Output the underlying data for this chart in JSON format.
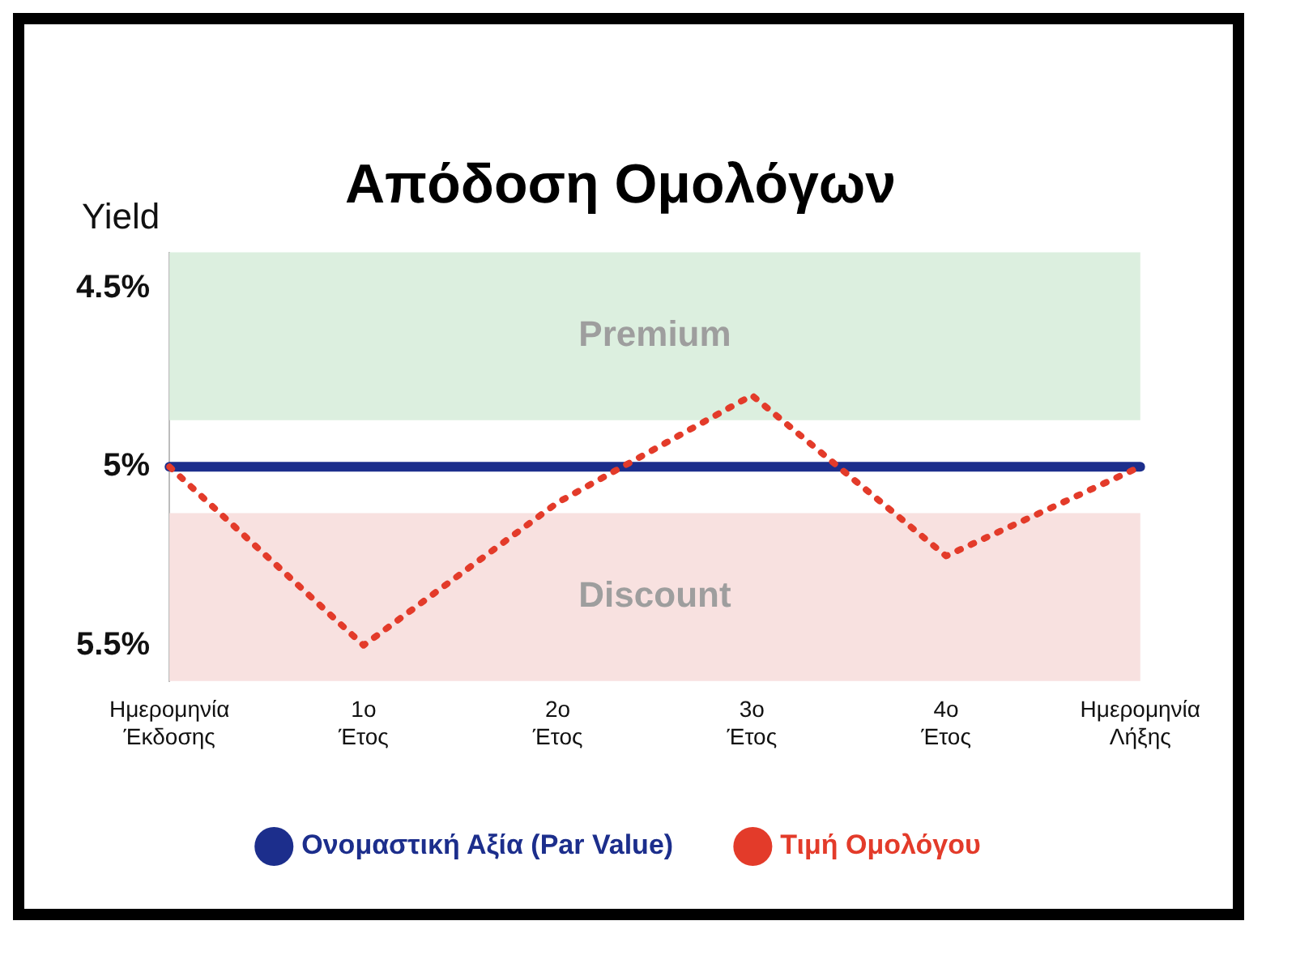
{
  "chart_data": {
    "type": "line",
    "title": "Απόδοση Ομολόγων",
    "ylabel": "Yield",
    "categories": [
      "Ημερομηνία Έκδοσης",
      "1ο Έτος",
      "2ο Έτος",
      "3ο Έτος",
      "4ο Έτος",
      "Ημερομηνία Λήξης"
    ],
    "series": [
      {
        "name": "Ονομαστική Αξία (Par Value)",
        "color": "#1c2e8c",
        "line_style": "solid",
        "values": [
          5,
          5,
          5,
          5,
          5,
          5
        ]
      },
      {
        "name": "Τιμή Ομολόγου",
        "color": "#e33b2a",
        "line_style": "dotted",
        "values": [
          5,
          5.5,
          5.1,
          4.8,
          5.25,
          5
        ]
      }
    ],
    "ylim": [
      5.6,
      4.4
    ],
    "yticks": [
      {
        "value": 4.5,
        "label": "4.5%"
      },
      {
        "value": 5,
        "label": "5%"
      },
      {
        "value": 5.5,
        "label": "5.5%"
      }
    ],
    "bands": [
      {
        "axis": "y",
        "from": 4.4,
        "to": 4.87,
        "label": "Premium",
        "color": "#dcefdf"
      },
      {
        "axis": "y",
        "from": 5.13,
        "to": 5.6,
        "label": "Discount",
        "color": "#f8e1e0"
      }
    ],
    "grid": false,
    "marker": "none",
    "legend": "bottom"
  }
}
